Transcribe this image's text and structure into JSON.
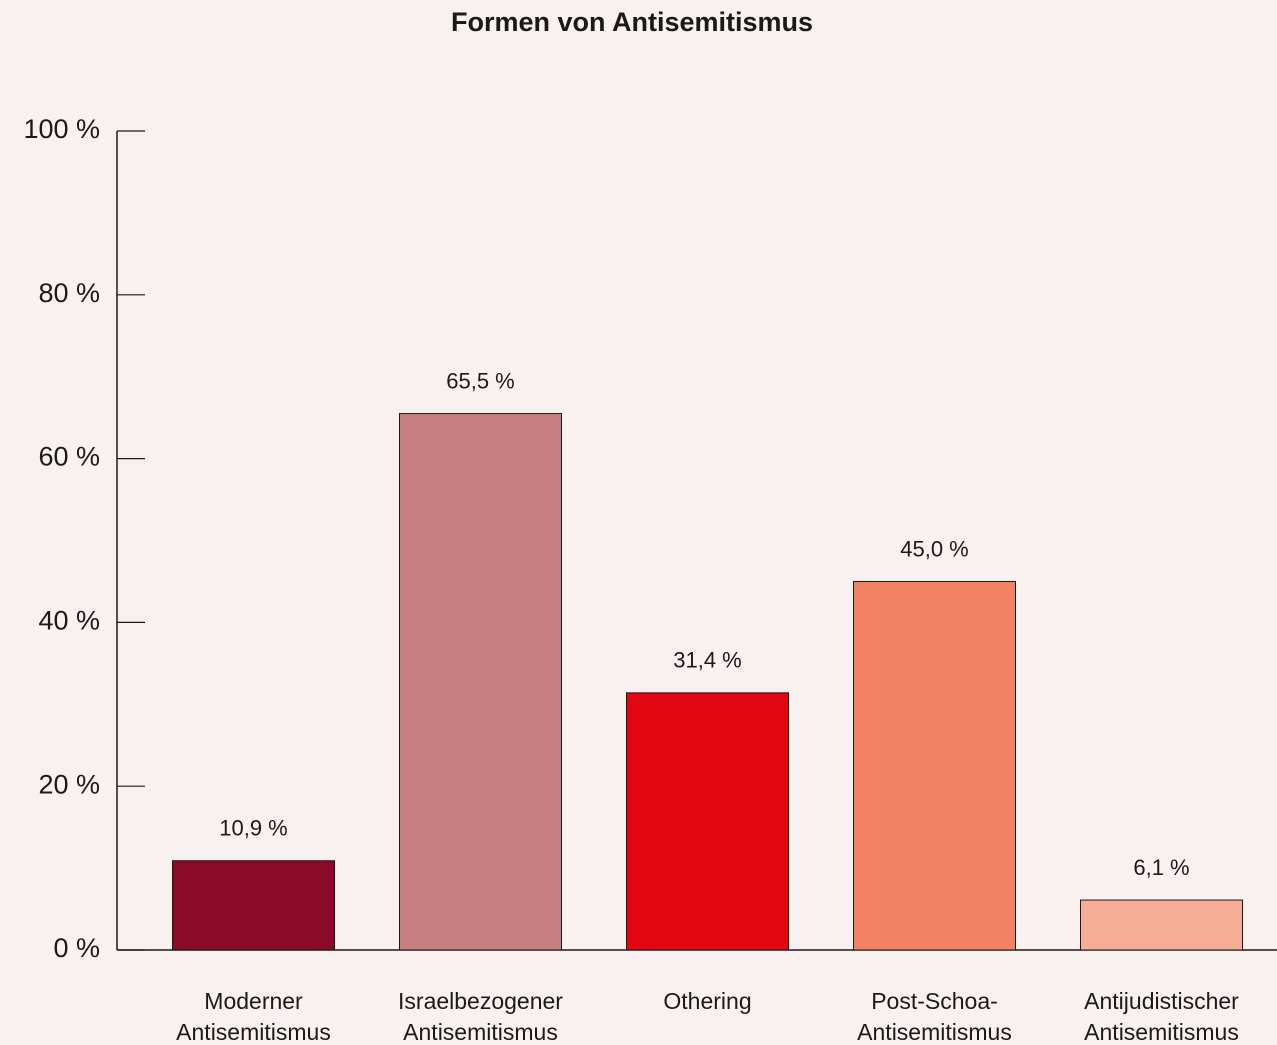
{
  "chart_data": {
    "type": "bar",
    "title": "Formen von Antisemitismus",
    "categories": [
      "Moderner Antisemitismus",
      "Israelbezogener Antisemitismus",
      "Othering",
      "Post-Schoa-Antisemitismus",
      "Antijudistischer Antisemitismus"
    ],
    "values": [
      10.9,
      65.5,
      31.4,
      45.0,
      6.1
    ],
    "value_labels": [
      "10,9 %",
      "65,5 %",
      "31,4 %",
      "45,0 %",
      "6,1 %"
    ],
    "colors": [
      "#8b0a28",
      "#c68080",
      "#e20613",
      "#f38264",
      "#f6ad96"
    ],
    "ylim": [
      0,
      100
    ],
    "yticks": [
      {
        "value": 0,
        "label": "0 %"
      },
      {
        "value": 20,
        "label": "20 %"
      },
      {
        "value": 40,
        "label": "40 %"
      },
      {
        "value": 60,
        "label": "60 %"
      },
      {
        "value": 80,
        "label": "80 %"
      },
      {
        "value": 100,
        "label": "100 %"
      }
    ],
    "grid": false
  }
}
